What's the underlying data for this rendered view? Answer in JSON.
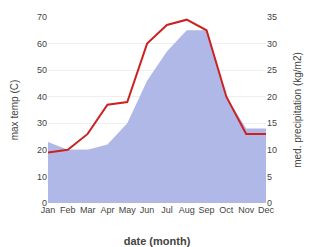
{
  "chart_data": {
    "type": "line",
    "categories": [
      "Jan",
      "Feb",
      "Mar",
      "Apr",
      "May",
      "Jun",
      "Jul",
      "Aug",
      "Sep",
      "Oct",
      "Nov",
      "Dec"
    ],
    "xlabel": "date (month)",
    "ylabel": "max temp (C)",
    "y2label": "med. precipitation (kg/m2)",
    "series": [
      {
        "type": "area",
        "axis": "y2",
        "color": "#b0b8e8",
        "values": [
          11.5,
          10,
          10,
          11,
          15,
          23,
          28.5,
          32.5,
          32.5,
          20,
          14,
          14
        ]
      },
      {
        "type": "line",
        "color": "#cc2222",
        "values": [
          19,
          20,
          26,
          37,
          38,
          60,
          67,
          69,
          65,
          40,
          26,
          26
        ]
      }
    ],
    "ylim": [
      0,
      70
    ],
    "yticks": [
      0,
      10,
      20,
      30,
      40,
      50,
      60,
      70
    ],
    "y2lim": [
      0,
      35
    ],
    "y2ticks": [
      0,
      5,
      10,
      15,
      20,
      25,
      30,
      35
    ],
    "grid": true
  }
}
